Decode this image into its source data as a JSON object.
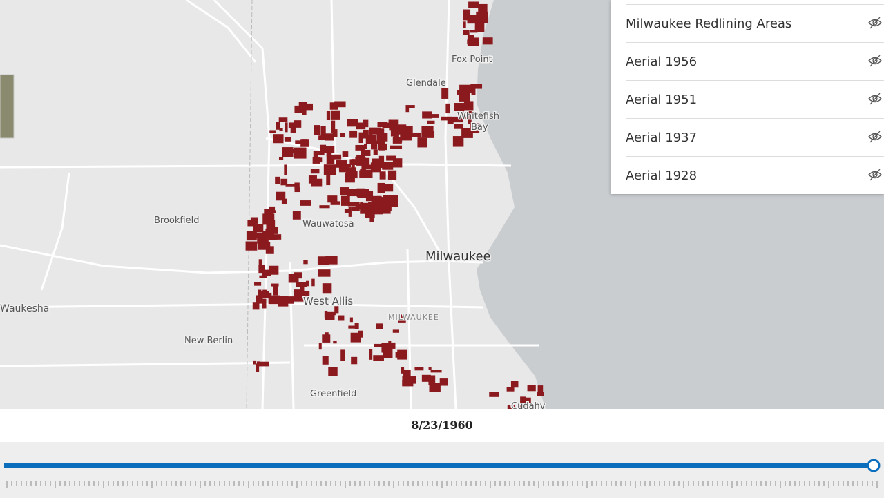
{
  "map": {
    "places": [
      "Fox Point",
      "Glendale",
      "Whitefish",
      "Bay",
      "Brookfield",
      "Wauwatosa",
      "Milwaukee",
      "West Allis",
      "MILWAUKEE",
      "Waukesha",
      "New Berlin",
      "Greenfield",
      "Cudahy"
    ]
  },
  "layers": [
    "Milwaukee Redlining Areas",
    "Aerial 1956",
    "Aerial 1951",
    "Aerial 1937",
    "Aerial 1928"
  ],
  "time_slider": {
    "date": "8/23/1960"
  }
}
